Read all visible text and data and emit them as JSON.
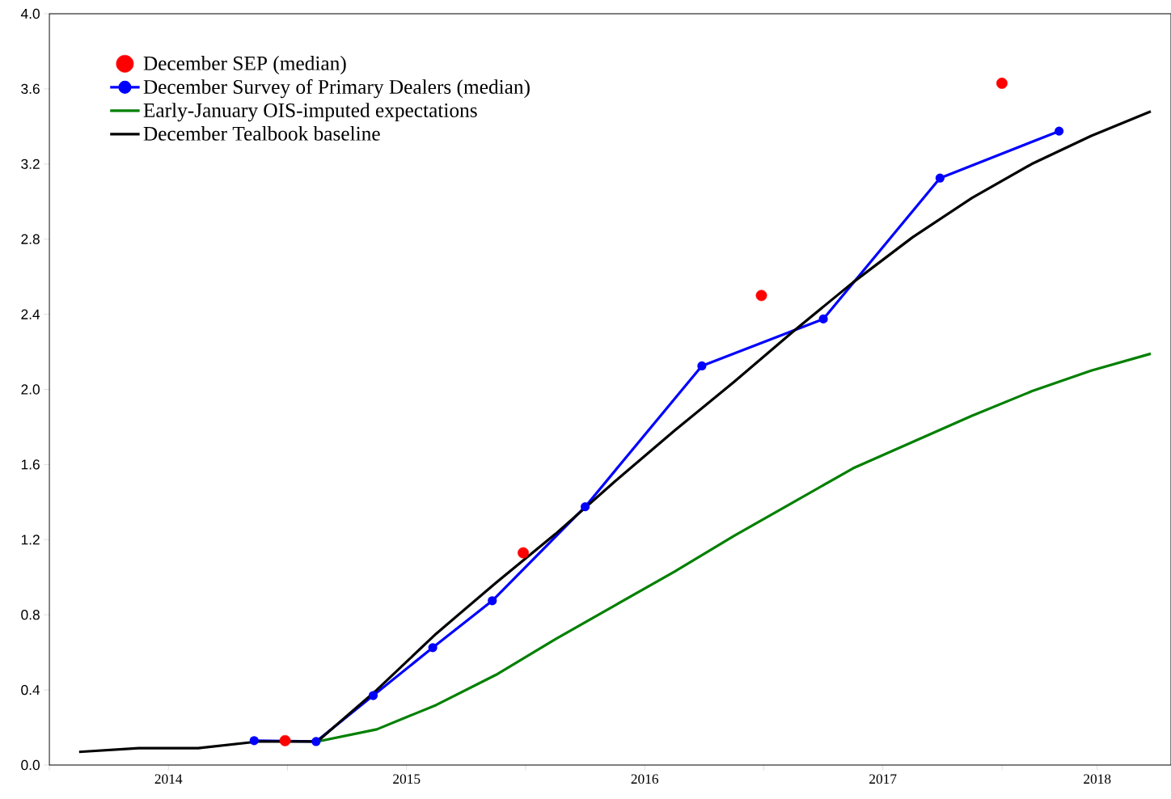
{
  "chart_data": {
    "type": "line",
    "xlim": [
      2014,
      2018.71
    ],
    "ylim": [
      0,
      4
    ],
    "xticks": [
      {
        "value": 2014,
        "label": null
      },
      {
        "value": 2014.5,
        "label": "2014"
      },
      {
        "value": 2015,
        "label": null
      },
      {
        "value": 2015.5,
        "label": "2015"
      },
      {
        "value": 2016,
        "label": null
      },
      {
        "value": 2016.5,
        "label": "2016"
      },
      {
        "value": 2017,
        "label": null
      },
      {
        "value": 2017.5,
        "label": "2017"
      },
      {
        "value": 2018,
        "label": null
      },
      {
        "value": 2018.4,
        "label": "2018"
      }
    ],
    "yticks": [
      {
        "value": 0,
        "label": "0.0"
      },
      0.4,
      0.8,
      1.2,
      1.6,
      {
        "value": 2,
        "label": "2.0"
      },
      2.4,
      2.8,
      3.2,
      3.6,
      {
        "value": 4,
        "label": "4.0"
      }
    ],
    "legend": "top left",
    "grid": false,
    "series": [
      {
        "name": "December SEP (median)",
        "type": "scatter",
        "marker": "circle",
        "color": "#ff0000",
        "x": [
          2014.99,
          2015.99,
          2016.99,
          2018.0
        ],
        "values": [
          0.13,
          1.13,
          2.5,
          3.63
        ]
      },
      {
        "name": "December Survey of Primary Dealers (median)",
        "marker": "circle",
        "color": "#0000ff",
        "x": [
          2014.86,
          2015.12,
          2015.36,
          2015.61,
          2015.86,
          2016.25,
          2016.74,
          2017.25,
          2017.74,
          2018.24
        ],
        "values": [
          0.13,
          0.125,
          0.37,
          0.625,
          0.875,
          1.375,
          2.125,
          2.375,
          3.125,
          3.375
        ]
      },
      {
        "name": "Early-January OIS-imputed expectations",
        "color": "#008000",
        "x": [
          2015.125,
          2015.375,
          2015.625,
          2015.875,
          2016.125,
          2016.375,
          2016.625,
          2016.875,
          2017.125,
          2017.375,
          2017.625,
          2017.875,
          2018.125,
          2018.375,
          2018.625
        ],
        "values": [
          0.125,
          0.19,
          0.32,
          0.48,
          0.67,
          0.85,
          1.03,
          1.22,
          1.4,
          1.58,
          1.72,
          1.86,
          1.99,
          2.1,
          2.19
        ]
      },
      {
        "name": "December Tealbook baseline",
        "color": "#000000",
        "x": [
          2014.125,
          2014.375,
          2014.625,
          2014.875,
          2015.125,
          2015.375,
          2015.625,
          2015.875,
          2016.125,
          2016.375,
          2016.625,
          2016.875,
          2017.125,
          2017.375,
          2017.625,
          2017.875,
          2018.125,
          2018.375,
          2018.625
        ],
        "values": [
          0.07,
          0.09,
          0.09,
          0.125,
          0.125,
          0.4,
          0.7,
          0.97,
          1.23,
          1.51,
          1.78,
          2.04,
          2.31,
          2.57,
          2.81,
          3.02,
          3.2,
          3.35,
          3.48
        ]
      }
    ]
  }
}
